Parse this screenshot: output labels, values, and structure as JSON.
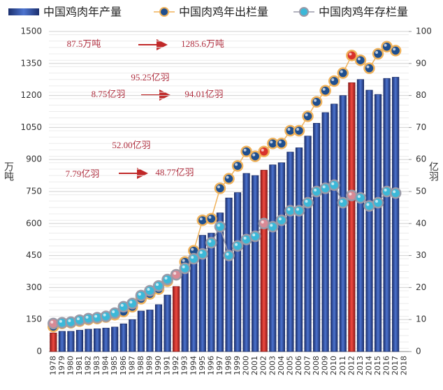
{
  "chart_data": {
    "type": "bar-line",
    "categories": [
      "1978",
      "1979",
      "1980",
      "1981",
      "1982",
      "1983",
      "1984",
      "1985",
      "1986",
      "1987",
      "1988",
      "1989",
      "1990",
      "1991",
      "1992",
      "1993",
      "1994",
      "1995",
      "1996",
      "1997",
      "1998",
      "1999",
      "2000",
      "2001",
      "2002",
      "2003",
      "2004",
      "2005",
      "2006",
      "2007",
      "2008",
      "2009",
      "2010",
      "2011",
      "2012",
      "2013",
      "2014",
      "2015",
      "2016",
      "2017",
      "2018"
    ],
    "series": [
      {
        "name": "中国鸡肉年产量",
        "type": "bar",
        "color": "#2b4a9a",
        "highlight_color": "#d8312c",
        "highlight": [
          0,
          14,
          24,
          34
        ],
        "values": [
          87.5,
          95,
          95,
          100,
          105,
          107,
          110,
          115,
          130,
          150,
          190,
          195,
          220,
          265,
          305,
          385,
          450,
          545,
          555,
          650,
          720,
          745,
          835,
          825,
          850,
          875,
          885,
          935,
          955,
          1010,
          1070,
          1120,
          1160,
          1200,
          1260,
          1275,
          1225,
          1205,
          1280,
          1285.6,
          null
        ]
      },
      {
        "name": "中国肉鸡年出栏量",
        "type": "line",
        "axis": "y2",
        "color": "#1f4f8f",
        "line_color": "#f0b25a",
        "highlight_color": "#d8312c",
        "highlight": [
          24,
          34
        ],
        "values": [
          7.79,
          8.8,
          9,
          9.5,
          10,
          10.3,
          10.8,
          11.5,
          12.5,
          14,
          16.5,
          18,
          19.5,
          22,
          24,
          28,
          31.5,
          41,
          41.5,
          51,
          54,
          58,
          62.5,
          61,
          62.5,
          65,
          65,
          69,
          69,
          73.5,
          78,
          81.5,
          84.5,
          87,
          92.5,
          91,
          88.5,
          93,
          95.25,
          94.01,
          null
        ]
      },
      {
        "name": "中国肉鸡年存栏量",
        "type": "line",
        "axis": "y2",
        "color": "#3cb8d8",
        "line_color": "#9a9aa8",
        "highlight_color": "#d88a95",
        "highlight": [
          0,
          14,
          24,
          34
        ],
        "values": [
          8.75,
          9,
          9.2,
          9.8,
          10.3,
          10.6,
          11,
          12,
          14,
          15,
          17.5,
          19,
          20.5,
          22.5,
          24,
          26,
          29,
          30.5,
          34,
          39,
          30,
          33,
          35,
          36,
          40,
          39,
          41,
          44,
          44,
          46.5,
          50,
          51,
          52,
          46.5,
          48.77,
          48,
          45.5,
          46.5,
          50,
          49.5,
          null
        ]
      }
    ],
    "ylabel": "万吨",
    "y2label": "亿羽",
    "ylim": [
      0,
      1500
    ],
    "yticks": [
      0,
      150,
      300,
      450,
      600,
      750,
      900,
      1050,
      1200,
      1350,
      1500
    ],
    "y2lim": [
      0,
      100
    ],
    "y2ticks": [
      0,
      10,
      20,
      30,
      40,
      50,
      60,
      70,
      80,
      90,
      100
    ],
    "grid": true,
    "legend": "top",
    "annotations": [
      "87.5万吨",
      "1285.6万吨",
      "95.25亿羽",
      "8.75亿羽",
      "94.01亿羽",
      "52.00亿羽",
      "7.79亿羽",
      "48.77亿羽"
    ]
  }
}
